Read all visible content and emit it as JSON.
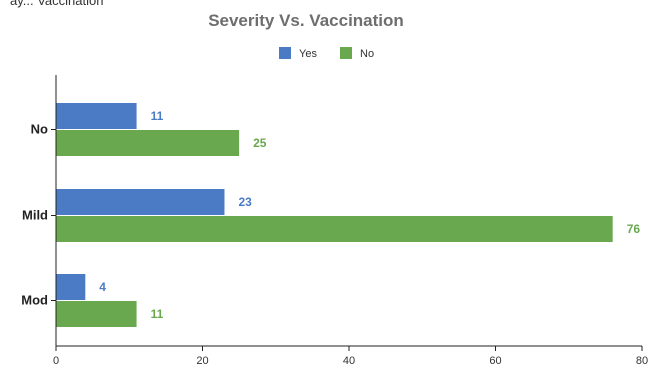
{
  "caption": "ay... Vaccination",
  "chart_data": {
    "type": "bar",
    "orientation": "horizontal",
    "title": "Severity Vs. Vaccination",
    "xlabel": "",
    "ylabel": "",
    "categories": [
      "No",
      "Mild",
      "Mod"
    ],
    "series": [
      {
        "name": "Yes",
        "color": "#4a7bc4",
        "values": [
          11,
          23,
          4
        ]
      },
      {
        "name": "No",
        "color": "#6aa84f",
        "values": [
          25,
          76,
          11
        ]
      }
    ],
    "xlim": [
      0,
      80
    ],
    "xticks": [
      0,
      20,
      40,
      60,
      80
    ],
    "grid": false,
    "legend": "top"
  }
}
